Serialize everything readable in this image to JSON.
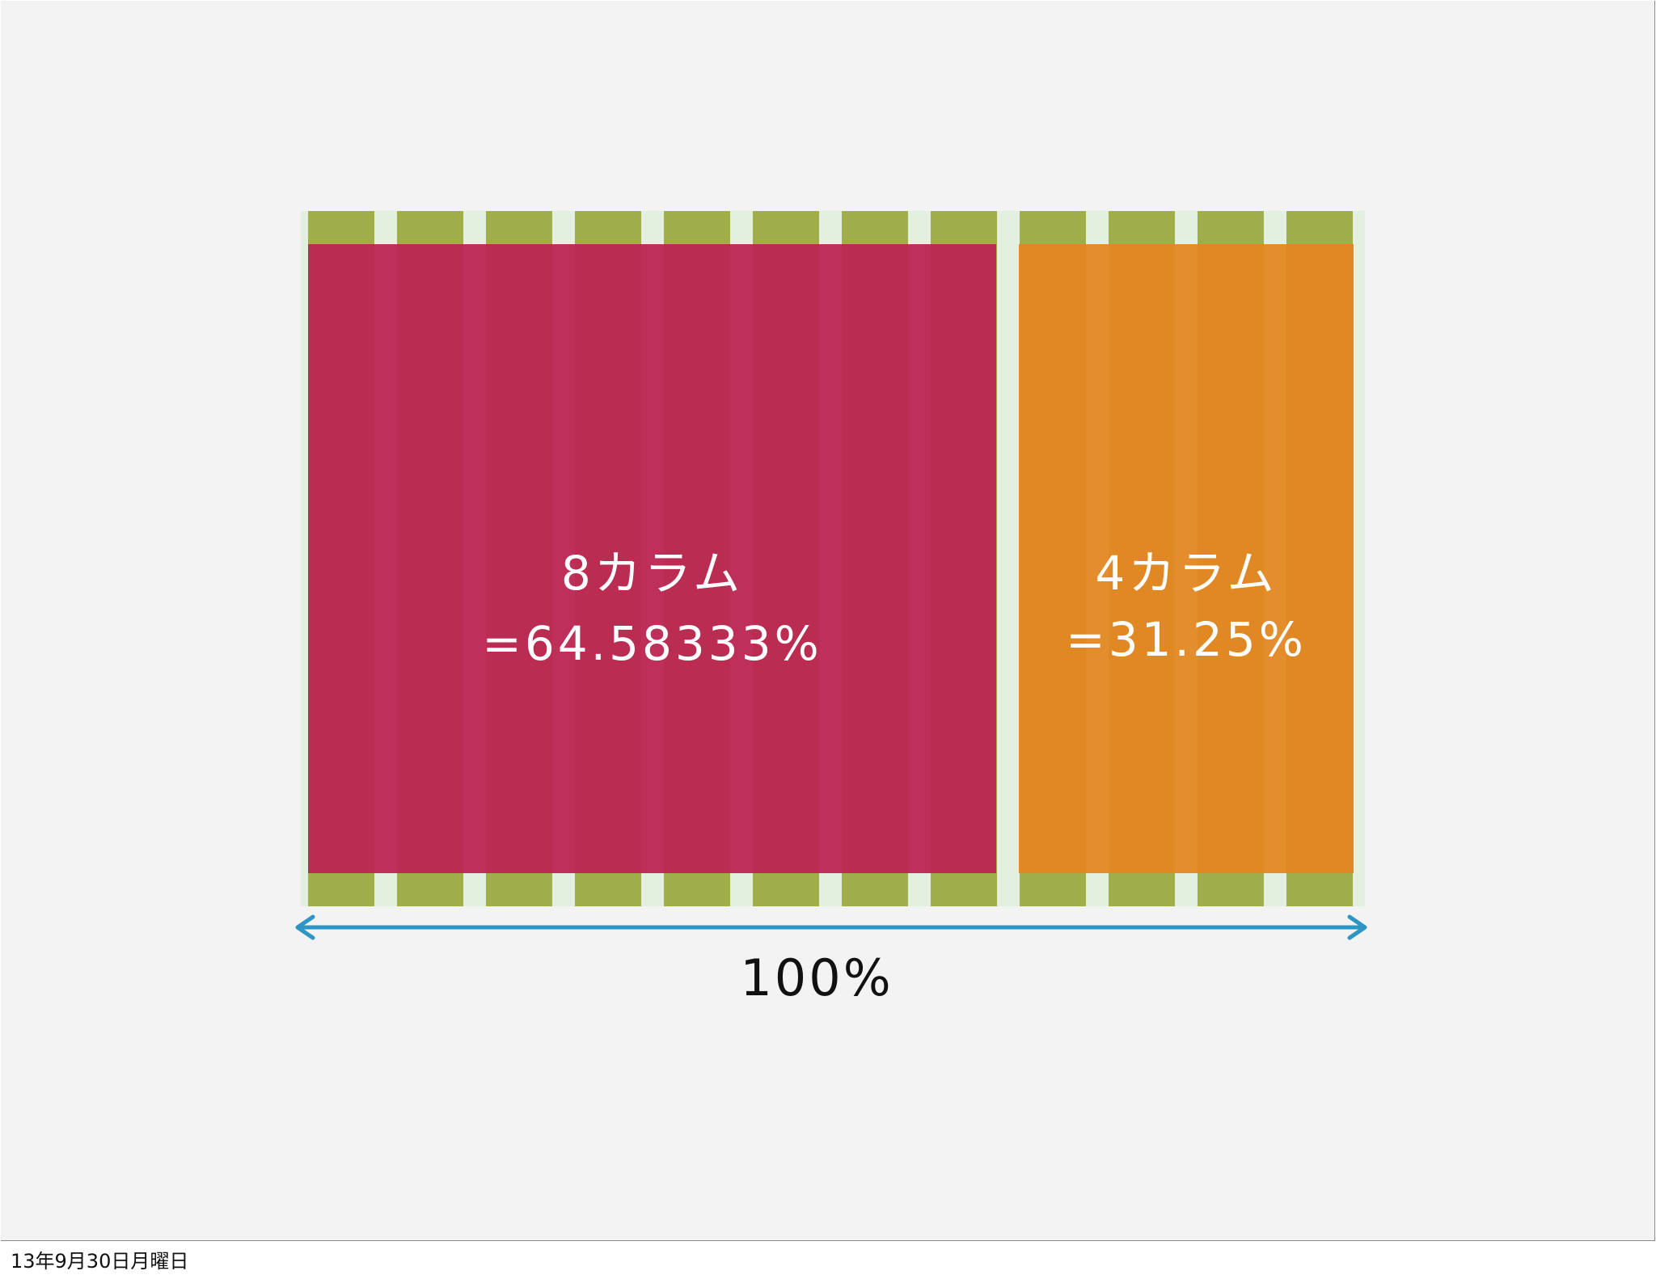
{
  "block_8": {
    "title": "8カラム",
    "value": "=64.58333%"
  },
  "block_4": {
    "title": "4カラム",
    "value": "=31.25%"
  },
  "total": "100%",
  "footer_date": "13年9月30日月曜日",
  "colors": {
    "background": "#f3f3f4",
    "grid_column": "#a0ae49",
    "grid_gutter": "#e3f0df",
    "block_8": "#bc2552",
    "block_4": "#e38622",
    "arrow": "#2e95c5"
  }
}
